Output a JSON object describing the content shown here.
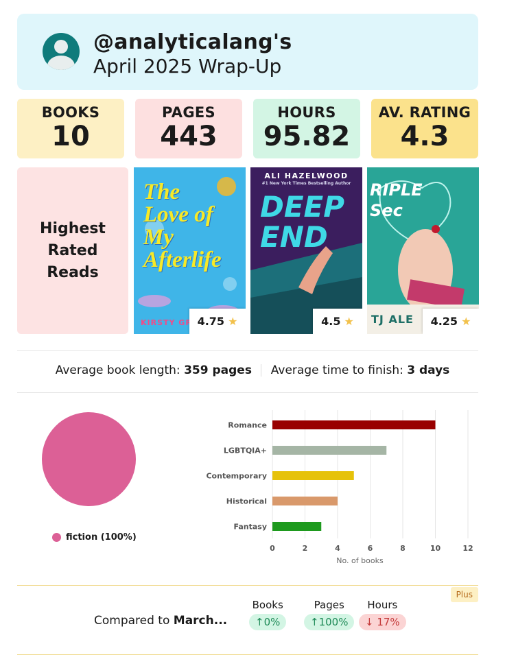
{
  "header": {
    "handle": "@analyticalang's",
    "subtitle": "April 2025 Wrap-Up",
    "bg_color": "#dff6fb",
    "avatar_icon": "user-avatar-icon"
  },
  "stats": [
    {
      "label": "BOOKS",
      "value": "10"
    },
    {
      "label": "PAGES",
      "value": "443"
    },
    {
      "label": "HOURS",
      "value": "95.82"
    },
    {
      "label": "AV. RATING",
      "value": "4.3"
    }
  ],
  "highest_rated": {
    "line1": "Highest",
    "line2": "Rated",
    "line3": "Reads",
    "books": [
      {
        "cover_title": "The Love of My Afterlife",
        "cover_author": "KIRSTY GR",
        "rating": "4.75"
      },
      {
        "cover_title": "DEEP END",
        "cover_author": "ALI HAZELWOOD",
        "cover_tagline": "#1 New York Times Bestselling Author",
        "rating": "4.5"
      },
      {
        "cover_title": "RIPLE Sec",
        "cover_author": "TJ ALE",
        "rating": "4.25"
      }
    ],
    "star_icon": "star-icon"
  },
  "averages": {
    "length_label": "Average book length:",
    "length_value": "359 pages",
    "time_label": "Average time to finish:",
    "time_value": "3 days"
  },
  "pie": {
    "legend_label": "fiction (100%)",
    "color": "#dc6096"
  },
  "chart_data": {
    "type": "bar",
    "orientation": "horizontal",
    "categories": [
      "Romance",
      "LGBTQIA+",
      "Contemporary",
      "Historical",
      "Fantasy"
    ],
    "values": [
      10,
      7,
      5,
      4,
      3
    ],
    "colors": [
      "#990000",
      "#a5b5a5",
      "#e6c20a",
      "#d9996b",
      "#1e9a1e"
    ],
    "xlabel": "No. of books",
    "xlim": [
      0,
      12
    ],
    "xticks": [
      "0",
      "2",
      "4",
      "6",
      "8",
      "10",
      "12"
    ],
    "grid": true
  },
  "compare": {
    "prefix": "Compared to ",
    "month": "March...",
    "badge": "Plus",
    "metrics": [
      {
        "label": "Books",
        "value": "↑0%",
        "direction": "up"
      },
      {
        "label": "Pages",
        "value": "↑100%",
        "direction": "up"
      },
      {
        "label": "Hours",
        "value": "↓ 17%",
        "direction": "down"
      }
    ]
  }
}
